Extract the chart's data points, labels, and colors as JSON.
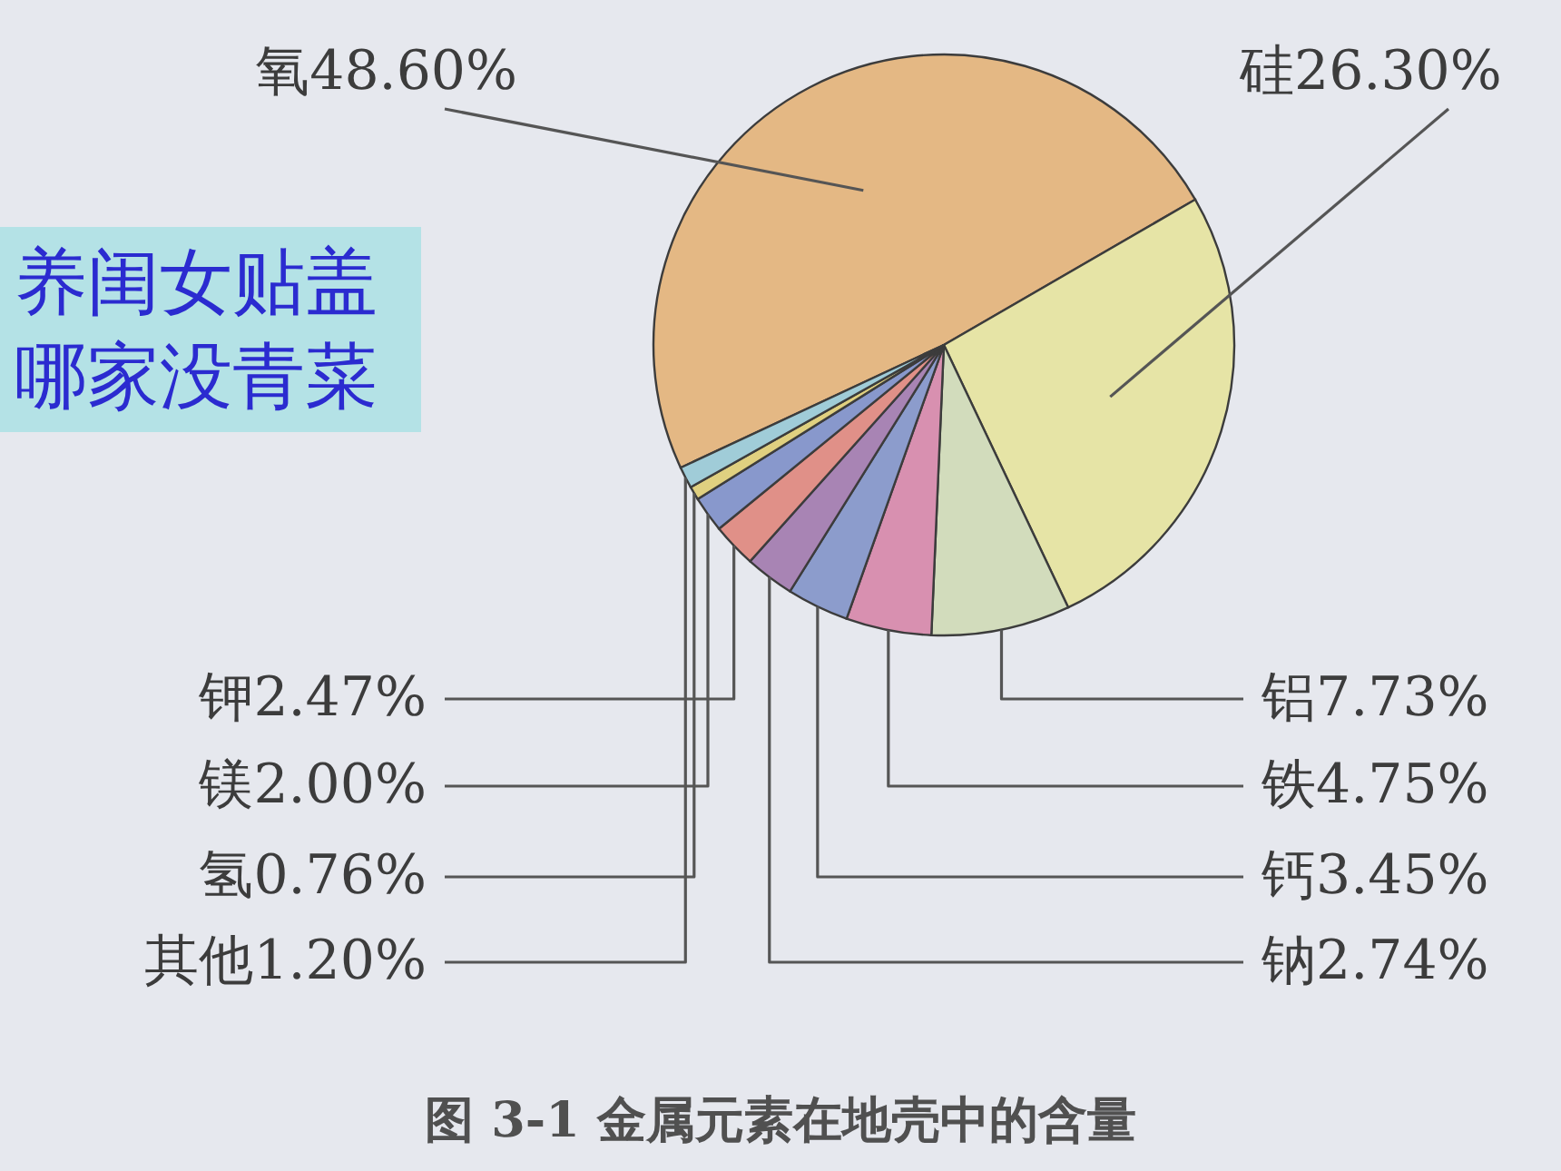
{
  "chart_data": {
    "type": "pie",
    "title": "图 3-1  金属元素在地壳中的含量",
    "categories": [
      "氧",
      "硅",
      "铝",
      "铁",
      "钙",
      "钠",
      "钾",
      "镁",
      "氢",
      "其他"
    ],
    "values": [
      48.6,
      26.3,
      7.73,
      4.75,
      3.45,
      2.74,
      2.47,
      2.0,
      0.76,
      1.2
    ],
    "value_labels": [
      "48.60%",
      "26.30%",
      "7.73%",
      "4.75%",
      "3.45%",
      "2.74%",
      "2.47%",
      "2.00%",
      "0.76%",
      "1.20%"
    ],
    "colors": [
      "#e4b884",
      "#e6e4a6",
      "#d2dcbc",
      "#d890b0",
      "#8c9ccc",
      "#a884b4",
      "#e09088",
      "#8898cc",
      "#e0d080",
      "#a0ccd8"
    ],
    "annotations": [
      "养闺女贴盖",
      "哪家没青菜"
    ]
  }
}
